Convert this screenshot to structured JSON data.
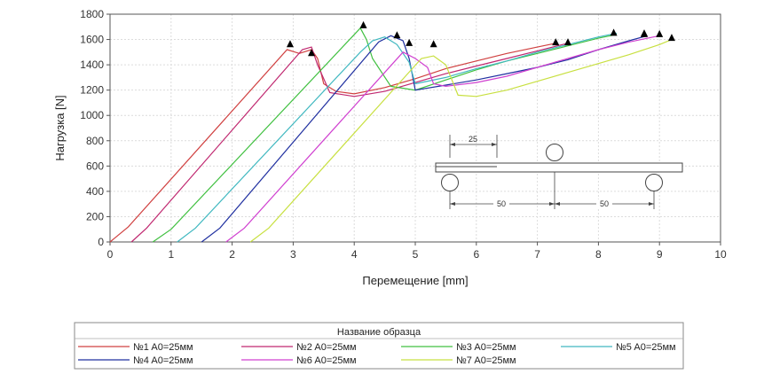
{
  "chart_data": {
    "type": "line",
    "xlabel": "Перемещение [mm]",
    "ylabel": "Нагрузка [N]",
    "xlim": [
      0,
      10
    ],
    "ylim": [
      0,
      1800
    ],
    "xticks": [
      "0",
      "1",
      "2",
      "3",
      "4",
      "5",
      "6",
      "7",
      "8",
      "9",
      "10"
    ],
    "yticks": [
      "0",
      "200",
      "400",
      "600",
      "800",
      "1000",
      "1200",
      "1400",
      "1600",
      "1800"
    ],
    "grid": true,
    "legend": {
      "title": "Название образца",
      "placement": "bottom"
    },
    "series": [
      {
        "name": "№1 A0=25мм",
        "color": "#d04040",
        "points": [
          [
            0,
            0
          ],
          [
            0.3,
            120
          ],
          [
            2.9,
            1520
          ],
          [
            3.1,
            1490
          ],
          [
            3.3,
            1520
          ],
          [
            3.4,
            1450
          ],
          [
            3.5,
            1250
          ],
          [
            3.7,
            1190
          ],
          [
            4.0,
            1170
          ],
          [
            4.5,
            1220
          ],
          [
            5.0,
            1290
          ],
          [
            5.5,
            1370
          ],
          [
            6.0,
            1430
          ],
          [
            6.5,
            1490
          ],
          [
            7.0,
            1540
          ],
          [
            7.3,
            1570
          ]
        ],
        "peaks": [
          [
            2.95,
            1560
          ],
          [
            7.3,
            1575
          ]
        ]
      },
      {
        "name": "№2 A0=25мм",
        "color": "#c02870",
        "points": [
          [
            0.35,
            0
          ],
          [
            0.6,
            110
          ],
          [
            3.15,
            1520
          ],
          [
            3.3,
            1540
          ],
          [
            3.4,
            1400
          ],
          [
            3.6,
            1180
          ],
          [
            4.0,
            1150
          ],
          [
            4.5,
            1190
          ],
          [
            5.0,
            1260
          ],
          [
            5.5,
            1330
          ],
          [
            6.0,
            1390
          ],
          [
            6.5,
            1450
          ],
          [
            7.0,
            1510
          ],
          [
            7.5,
            1570
          ]
        ],
        "peaks": [
          [
            3.3,
            1490
          ],
          [
            7.5,
            1575
          ]
        ]
      },
      {
        "name": "№3 A0=25мм",
        "color": "#40c040",
        "points": [
          [
            0.7,
            0
          ],
          [
            1.0,
            100
          ],
          [
            4.1,
            1690
          ],
          [
            4.2,
            1600
          ],
          [
            4.3,
            1450
          ],
          [
            4.6,
            1230
          ],
          [
            5.0,
            1200
          ],
          [
            5.5,
            1280
          ],
          [
            6.0,
            1360
          ],
          [
            6.5,
            1430
          ],
          [
            7.0,
            1490
          ],
          [
            7.5,
            1550
          ],
          [
            8.0,
            1610
          ],
          [
            8.3,
            1640
          ]
        ],
        "peaks": [
          [
            4.15,
            1710
          ],
          [
            8.25,
            1650
          ]
        ]
      },
      {
        "name": "№4 A0=25мм",
        "color": "#2030a0",
        "points": [
          [
            1.5,
            0
          ],
          [
            1.8,
            110
          ],
          [
            4.4,
            1580
          ],
          [
            4.6,
            1630
          ],
          [
            4.8,
            1590
          ],
          [
            4.9,
            1450
          ],
          [
            5.0,
            1200
          ],
          [
            5.5,
            1240
          ],
          [
            6.0,
            1280
          ],
          [
            6.5,
            1330
          ],
          [
            7.0,
            1380
          ],
          [
            7.5,
            1440
          ],
          [
            8.0,
            1520
          ],
          [
            8.5,
            1590
          ],
          [
            8.8,
            1630
          ]
        ],
        "peaks": [
          [
            4.7,
            1630
          ],
          [
            8.75,
            1640
          ]
        ]
      },
      {
        "name": "№5 A0=25мм",
        "color": "#40b8c0",
        "points": [
          [
            1.1,
            0
          ],
          [
            1.4,
            110
          ],
          [
            4.1,
            1500
          ],
          [
            4.3,
            1590
          ],
          [
            4.5,
            1620
          ],
          [
            4.7,
            1560
          ],
          [
            4.9,
            1420
          ],
          [
            5.0,
            1250
          ],
          [
            5.5,
            1300
          ],
          [
            6.0,
            1370
          ],
          [
            6.5,
            1430
          ],
          [
            7.0,
            1500
          ],
          [
            7.5,
            1560
          ],
          [
            8.0,
            1620
          ],
          [
            8.3,
            1650
          ]
        ],
        "peaks": [
          [
            4.9,
            1570
          ],
          [
            8.75,
            1645
          ]
        ]
      },
      {
        "name": "№6 A0=25мм",
        "color": "#d040d0",
        "points": [
          [
            1.9,
            0
          ],
          [
            2.2,
            110
          ],
          [
            4.8,
            1500
          ],
          [
            5.0,
            1450
          ],
          [
            5.2,
            1380
          ],
          [
            5.3,
            1250
          ],
          [
            5.5,
            1230
          ],
          [
            6.0,
            1260
          ],
          [
            6.5,
            1310
          ],
          [
            7.0,
            1380
          ],
          [
            7.5,
            1450
          ],
          [
            8.0,
            1520
          ],
          [
            8.5,
            1580
          ],
          [
            9.0,
            1630
          ]
        ],
        "peaks": [
          [
            5.3,
            1560
          ],
          [
            9.0,
            1640
          ]
        ]
      },
      {
        "name": "№7 A0=25мм",
        "color": "#c8e040",
        "points": [
          [
            2.3,
            0
          ],
          [
            2.6,
            110
          ],
          [
            5.1,
            1450
          ],
          [
            5.3,
            1470
          ],
          [
            5.5,
            1400
          ],
          [
            5.7,
            1160
          ],
          [
            6.0,
            1150
          ],
          [
            6.5,
            1200
          ],
          [
            7.0,
            1270
          ],
          [
            7.5,
            1340
          ],
          [
            8.0,
            1410
          ],
          [
            8.5,
            1480
          ],
          [
            9.0,
            1560
          ],
          [
            9.2,
            1600
          ]
        ],
        "peaks": [
          [
            9.2,
            1610
          ]
        ]
      }
    ],
    "inset": {
      "dim_top": "25",
      "dim_left": "50",
      "dim_right": "50"
    }
  }
}
